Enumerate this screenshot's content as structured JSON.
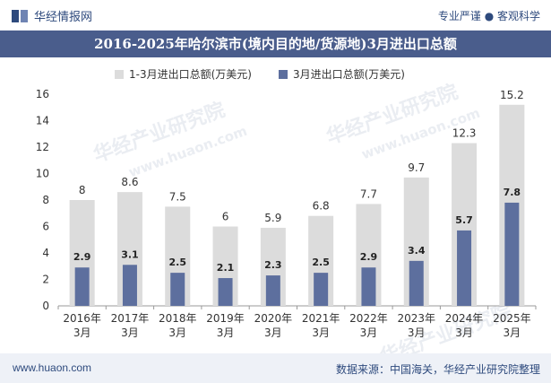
{
  "header": {
    "brand": "华经情报网",
    "tagline": "专业严谨 ● 客观科学"
  },
  "title": "2016-2025年哈尔滨市(境内目的地/货源地)3月进出口总额",
  "watermark": {
    "cn": "华经产业研究院",
    "url": "www.huaon.com"
  },
  "footer": {
    "website": "www.huaon.com",
    "source": "数据来源：中国海关，华经产业研究院整理"
  },
  "colors": {
    "series1": "#dcdcdc",
    "series2": "#5d6f9e",
    "title_bg": "#4a5d8c",
    "brand": "#2e4a7d"
  },
  "chart_data": {
    "type": "bar",
    "categories": [
      "2016年\n3月",
      "2017年\n3月",
      "2018年\n3月",
      "2019年\n3月",
      "2020年\n3月",
      "2021年\n3月",
      "2022年\n3月",
      "2023年\n3月",
      "2024年\n3月",
      "2025年\n3月"
    ],
    "series": [
      {
        "name": "1-3月进出口总额(万美元)",
        "values": [
          8,
          8.6,
          7.5,
          6,
          5.9,
          6.8,
          7.7,
          9.7,
          12.3,
          15.2
        ]
      },
      {
        "name": "3月进出口总额(万美元)",
        "values": [
          2.9,
          3.1,
          2.5,
          2.1,
          2.3,
          2.5,
          2.9,
          3.4,
          5.7,
          7.8
        ]
      }
    ],
    "ylim": [
      0,
      16
    ],
    "yticks": [
      0,
      2,
      4,
      6,
      8,
      10,
      12,
      14,
      16
    ],
    "legend_position": "top",
    "grid": false
  }
}
